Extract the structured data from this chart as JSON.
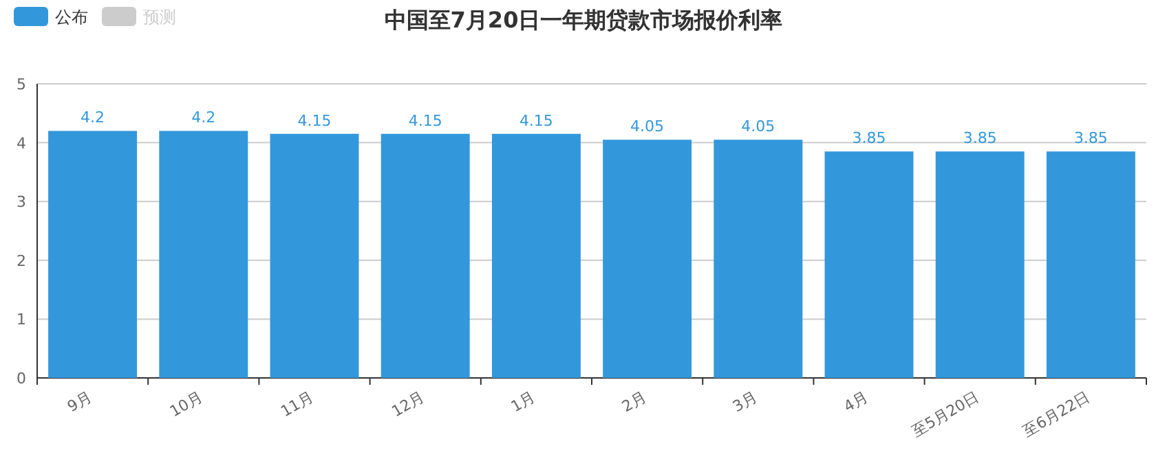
{
  "chart_data": {
    "type": "bar",
    "title": "中国至7月20日一年期贷款市场报价利率",
    "categories": [
      "9月",
      "10月",
      "11月",
      "12月",
      "1月",
      "2月",
      "3月",
      "4月",
      "至5月20日",
      "至6月22日"
    ],
    "series": [
      {
        "name": "公布",
        "color": "#3398db",
        "values": [
          4.2,
          4.2,
          4.15,
          4.15,
          4.15,
          4.05,
          4.05,
          3.85,
          3.85,
          3.85
        ]
      },
      {
        "name": "预测",
        "color": "#cccccc",
        "values": [
          null,
          null,
          null,
          null,
          null,
          null,
          null,
          null,
          null,
          null
        ]
      }
    ],
    "ylim": [
      0,
      5
    ],
    "yticks": [
      0,
      1,
      2,
      3,
      4,
      5
    ],
    "grid": "y",
    "legend": "top left",
    "data_labels": true
  }
}
